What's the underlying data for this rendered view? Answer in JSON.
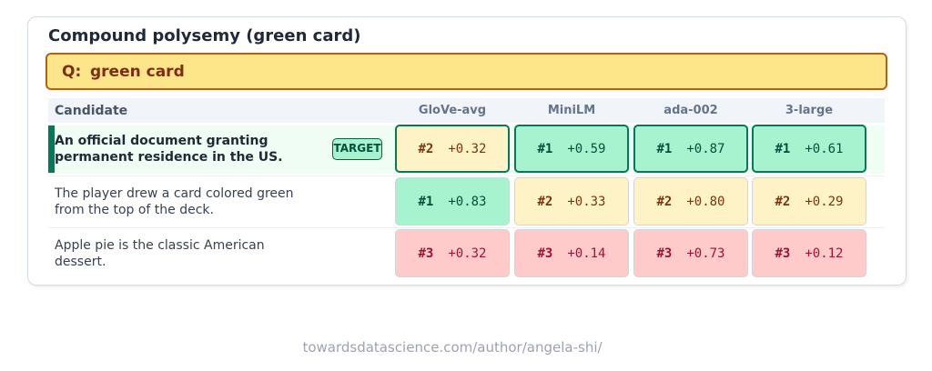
{
  "title": "Compound polysemy (green card)",
  "query": {
    "prefix": "Q:",
    "text": "green card"
  },
  "table": {
    "header": [
      "Candidate",
      "GloVe-avg",
      "MiniLM",
      "ada-002",
      "3-large"
    ],
    "rows": [
      {
        "candidate": "An official document granting permanent residence in the US.",
        "tag": "TARGET",
        "cells": [
          {
            "rank": "#2",
            "score": "+0.32"
          },
          {
            "rank": "#1",
            "score": "+0.59"
          },
          {
            "rank": "#1",
            "score": "+0.87"
          },
          {
            "rank": "#1",
            "score": "+0.61"
          }
        ]
      },
      {
        "candidate": "The player drew a card colored green from the top of the deck.",
        "cells": [
          {
            "rank": "#1",
            "score": "+0.83"
          },
          {
            "rank": "#2",
            "score": "+0.33"
          },
          {
            "rank": "#2",
            "score": "+0.80"
          },
          {
            "rank": "#2",
            "score": "+0.29"
          }
        ]
      },
      {
        "candidate": "Apple pie is the classic American dessert.",
        "cells": [
          {
            "rank": "#3",
            "score": "+0.32"
          },
          {
            "rank": "#3",
            "score": "+0.14"
          },
          {
            "rank": "#3",
            "score": "+0.73"
          },
          {
            "rank": "#3",
            "score": "+0.12"
          }
        ]
      }
    ]
  },
  "footer": "towardsdatascience.com/author/angela-shi/"
}
